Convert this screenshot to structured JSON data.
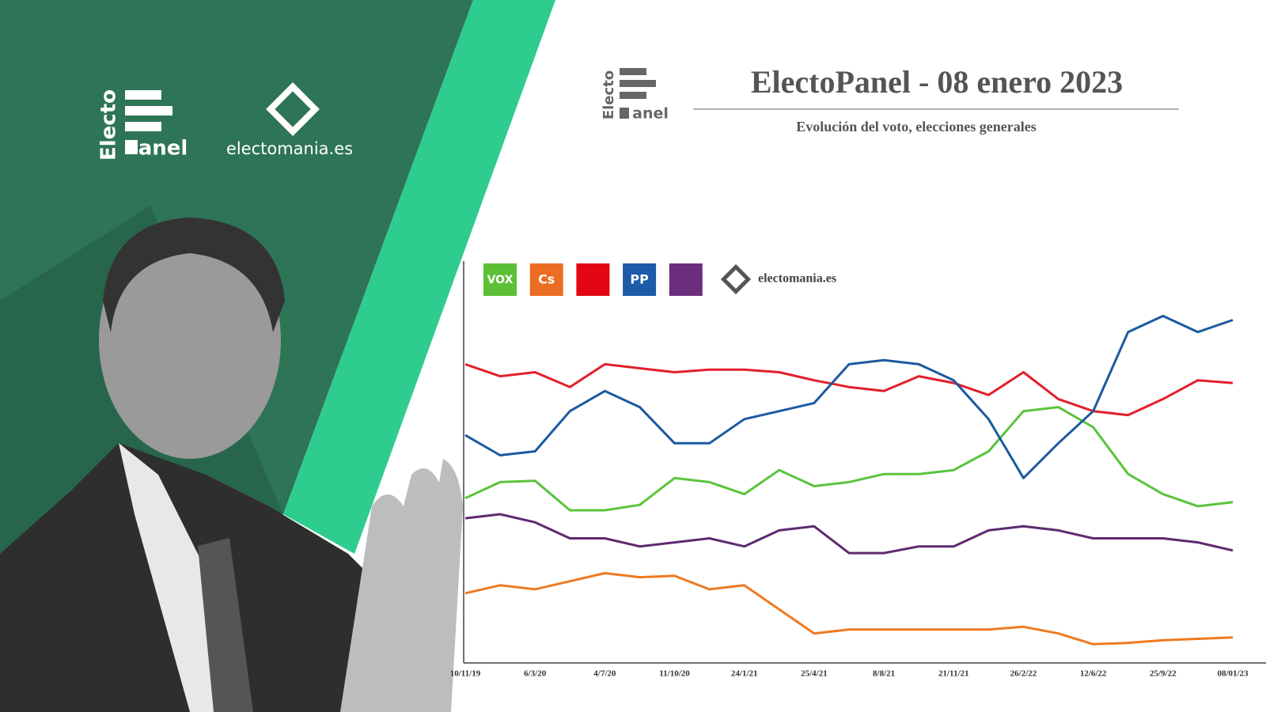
{
  "branding": {
    "logo_top": "Electo",
    "logo_bottom": "anel",
    "site": "electomania.es"
  },
  "chart_data": {
    "type": "line",
    "title": "ElectoPanel - 08 enero 2023",
    "subtitle": "Evolución del voto, elecciones generales",
    "categories": [
      "10/11/19",
      null,
      "6/3/20",
      null,
      "4/7/20",
      null,
      "11/10/20",
      null,
      "24/1/21",
      null,
      "25/4/21",
      null,
      "8/8/21",
      null,
      "21/11/21",
      null,
      "26/2/22",
      null,
      "12/6/22",
      null,
      "25/9/22",
      null,
      "08/01/23"
    ],
    "ylim": [
      0,
      30
    ],
    "grid": false,
    "series": [
      {
        "name": "VOX",
        "color": "#5ac43c",
        "legend_color": "#5bc035",
        "values": [
          12.3,
          13.5,
          13.6,
          11.4,
          11.4,
          11.8,
          13.8,
          13.5,
          12.6,
          14.4,
          13.2,
          13.5,
          14.1,
          14.1,
          14.4,
          15.8,
          18.8,
          19.1,
          17.6,
          14.1,
          12.6,
          11.7,
          12.0
        ]
      },
      {
        "name": "Cs",
        "color": "#ee7a22",
        "legend_color": "#eb6d23",
        "values": [
          5.2,
          5.8,
          5.5,
          6.1,
          6.7,
          6.4,
          6.5,
          5.5,
          5.8,
          4.0,
          2.2,
          2.5,
          2.5,
          2.5,
          2.5,
          2.5,
          2.7,
          2.2,
          1.4,
          1.5,
          1.7,
          1.8,
          1.9
        ]
      },
      {
        "color": "#e2202b",
        "legend_color": "#e30613",
        "values": [
          22.3,
          21.4,
          21.7,
          20.6,
          22.3,
          22.0,
          21.7,
          21.9,
          21.9,
          21.7,
          21.1,
          20.6,
          20.3,
          21.4,
          20.9,
          20.0,
          21.7,
          19.7,
          18.8,
          18.5,
          19.7,
          21.1,
          20.9
        ]
      },
      {
        "name": "PP",
        "color": "#1b5aa0",
        "legend_color": "#1d5aa8",
        "values": [
          17.0,
          15.5,
          15.8,
          18.8,
          20.3,
          19.1,
          16.4,
          16.4,
          18.2,
          18.8,
          19.4,
          22.3,
          22.6,
          22.3,
          21.1,
          18.2,
          13.8,
          16.4,
          18.8,
          24.7,
          25.9,
          24.7,
          25.6
        ]
      },
      {
        "color": "#5e2a70",
        "legend_color": "#6b2e7d",
        "values": [
          10.8,
          11.1,
          10.5,
          9.3,
          9.3,
          8.7,
          9.0,
          9.3,
          8.7,
          9.9,
          10.2,
          8.2,
          8.2,
          8.7,
          8.7,
          9.9,
          10.2,
          9.9,
          9.3,
          9.3,
          9.3,
          9.0,
          8.4
        ]
      }
    ]
  }
}
